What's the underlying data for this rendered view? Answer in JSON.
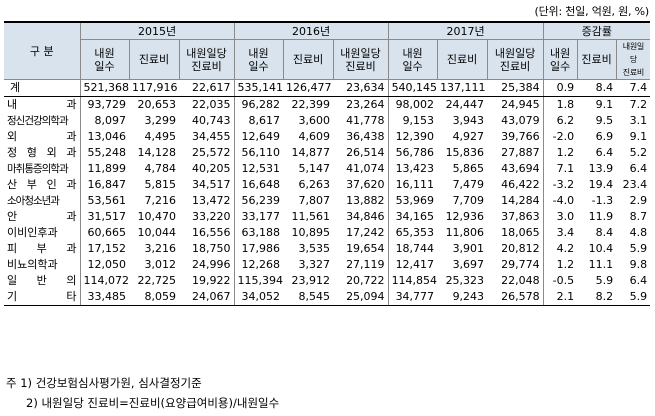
{
  "unit_note": "(단위: 천일, 억원, 원, %)",
  "corner_label": "구 분",
  "year_groups": [
    "2015년",
    "2016년",
    "2017년",
    "증감률"
  ],
  "sub_headers": [
    "내원\n일수",
    "진료비",
    "내원일당\n진료비"
  ],
  "growth_sub_headers": [
    "내원\n일수",
    "진료비",
    "내원일당\n진료비"
  ],
  "rows": [
    {
      "label": "계",
      "values": [
        "521,368",
        "117,916",
        "22,617",
        "535,141",
        "126,477",
        "23,634",
        "540,145",
        "137,111",
        "25,384",
        "0.9",
        "8.4",
        "7.4"
      ]
    },
    {
      "label": "내 과",
      "values": [
        "93,729",
        "20,653",
        "22,035",
        "96,282",
        "22,399",
        "23,264",
        "98,002",
        "24,447",
        "24,945",
        "1.8",
        "9.1",
        "7.2"
      ]
    },
    {
      "label": "정신건강의학과",
      "values": [
        "8,097",
        "3,299",
        "40,743",
        "8,617",
        "3,600",
        "41,778",
        "9,153",
        "3,943",
        "43,079",
        "6.2",
        "9.5",
        "3.1"
      ]
    },
    {
      "label": "외 과",
      "values": [
        "13,046",
        "4,495",
        "34,455",
        "12,649",
        "4,609",
        "36,438",
        "12,390",
        "4,927",
        "39,766",
        "-2.0",
        "6.9",
        "9.1"
      ]
    },
    {
      "label": "정 형 외 과",
      "values": [
        "55,248",
        "14,128",
        "25,572",
        "56,110",
        "14,877",
        "26,514",
        "56,786",
        "15,836",
        "27,887",
        "1.2",
        "6.4",
        "5.2"
      ]
    },
    {
      "label": "마취통증의학과",
      "values": [
        "11,899",
        "4,784",
        "40,205",
        "12,531",
        "5,147",
        "41,074",
        "13,423",
        "5,865",
        "43,694",
        "7.1",
        "13.9",
        "6.4"
      ]
    },
    {
      "label": "산 부 인 과",
      "values": [
        "16,847",
        "5,815",
        "34,517",
        "16,648",
        "6,263",
        "37,620",
        "16,111",
        "7,479",
        "46,422",
        "-3.2",
        "19.4",
        "23.4"
      ]
    },
    {
      "label": "소아청소년과",
      "values": [
        "53,561",
        "7,216",
        "13,472",
        "56,239",
        "7,807",
        "13,882",
        "53,969",
        "7,709",
        "14,284",
        "-4.0",
        "-1.3",
        "2.9"
      ]
    },
    {
      "label": "안 과",
      "values": [
        "31,517",
        "10,470",
        "33,220",
        "33,177",
        "11,561",
        "34,846",
        "34,165",
        "12,936",
        "37,863",
        "3.0",
        "11.9",
        "8.7"
      ]
    },
    {
      "label": "이비인후과",
      "values": [
        "60,665",
        "10,044",
        "16,556",
        "63,188",
        "10,895",
        "17,242",
        "65,353",
        "11,806",
        "18,065",
        "3.4",
        "8.4",
        "4.8"
      ]
    },
    {
      "label": "피 부 과",
      "values": [
        "17,152",
        "3,216",
        "18,750",
        "17,986",
        "3,535",
        "19,654",
        "18,744",
        "3,901",
        "20,812",
        "4.2",
        "10.4",
        "5.9"
      ]
    },
    {
      "label": "비뇨의학과",
      "values": [
        "12,050",
        "3,012",
        "24,996",
        "12,268",
        "3,327",
        "27,119",
        "12,417",
        "3,697",
        "29,774",
        "1.2",
        "11.1",
        "9.8"
      ]
    },
    {
      "label": "일 반 의",
      "values": [
        "114,072",
        "22,725",
        "19,922",
        "115,394",
        "23,912",
        "20,722",
        "114,854",
        "25,323",
        "22,048",
        "-0.5",
        "5.9",
        "6.4"
      ]
    },
    {
      "label": "기 타",
      "values": [
        "33,485",
        "8,059",
        "24,067",
        "34,052",
        "8,545",
        "25,094",
        "34,777",
        "9,243",
        "26,578",
        "2.1",
        "8.2",
        "5.9"
      ]
    }
  ],
  "notes": [
    "주 1) 건강보험심사평가원, 심사결정기준",
    "2) 내원일당 진료비=진료비(요양급여비용)/내원일수"
  ]
}
